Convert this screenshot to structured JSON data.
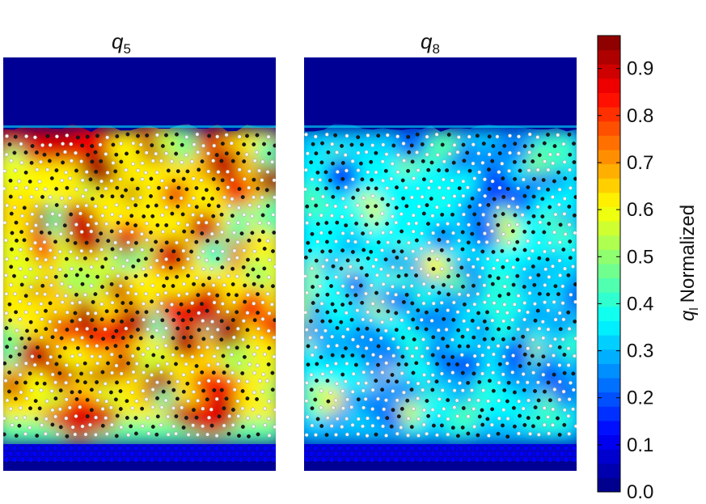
{
  "chart_data": {
    "type": "heatmap",
    "panels": [
      {
        "title_symbol": "q",
        "title_subscript": "5",
        "field": "high",
        "description_values": "mostly red/orange (≈0.7–0.95) with yellow-green regions; dark-blue (0.0) band above the packing and at the bottom layer"
      },
      {
        "title_symbol": "q",
        "title_subscript": "8",
        "field": "low",
        "description_values": "mostly cyan/blue (≈0.2–0.45) with scattered green-yellow spots; dark-blue (0.0) band above the packing and at the bottom layer"
      }
    ],
    "colorbar": {
      "colormap": "jet",
      "range": [
        0.0,
        0.97
      ],
      "ticks": [
        "0.0",
        "0.1",
        "0.2",
        "0.3",
        "0.4",
        "0.5",
        "0.6",
        "0.7",
        "0.8",
        "0.9"
      ],
      "tick_values": [
        0.0,
        0.1,
        0.2,
        0.3,
        0.4,
        0.5,
        0.6,
        0.7,
        0.8,
        0.9
      ],
      "label_symbol": "q",
      "label_subscript": "l",
      "label_text": "Normalized"
    }
  }
}
